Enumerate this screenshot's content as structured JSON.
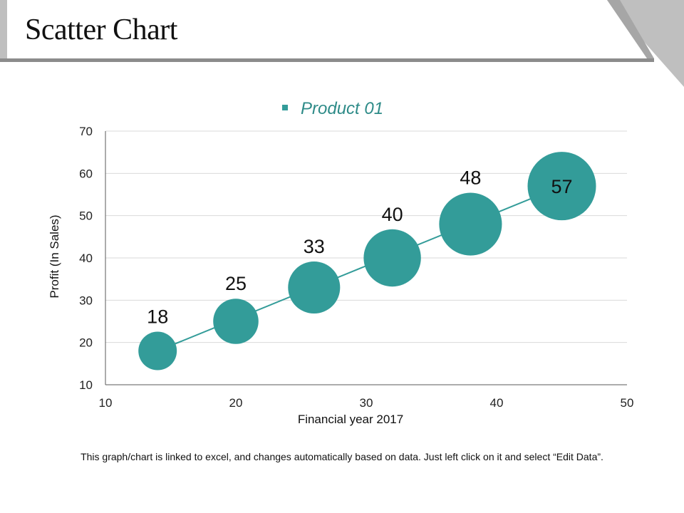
{
  "slide": {
    "title": "Scatter Chart",
    "footnote": "This graph/chart is linked to excel, and changes automatically based on data. Just left click on it and select “Edit Data”."
  },
  "colors": {
    "series": "#339C99",
    "legend_text": "#2E8B88",
    "grid": "#D9D9D9",
    "axis": "#595959",
    "title_bar_gray": "#8C8C8C",
    "corner_gray": "#BFBFBF"
  },
  "chart_data": {
    "type": "scatter",
    "title": "",
    "xlabel": "Financial year  2017",
    "ylabel": "Profit  (In Sales)",
    "xlim": [
      10,
      50
    ],
    "ylim": [
      10,
      70
    ],
    "xticks": [
      10,
      20,
      30,
      40,
      50
    ],
    "yticks": [
      10,
      20,
      30,
      40,
      50,
      60,
      70
    ],
    "grid": true,
    "legend": {
      "position": "top-center",
      "entries": [
        "Product 01"
      ]
    },
    "series": [
      {
        "name": "Product 01",
        "x": [
          14,
          20,
          26,
          32,
          38,
          45
        ],
        "y": [
          18,
          25,
          33,
          40,
          48,
          57
        ],
        "size": [
          18,
          25,
          33,
          40,
          48,
          57
        ],
        "labels": [
          "18",
          "25",
          "33",
          "40",
          "48",
          "57"
        ]
      }
    ],
    "trendline": "linear"
  }
}
